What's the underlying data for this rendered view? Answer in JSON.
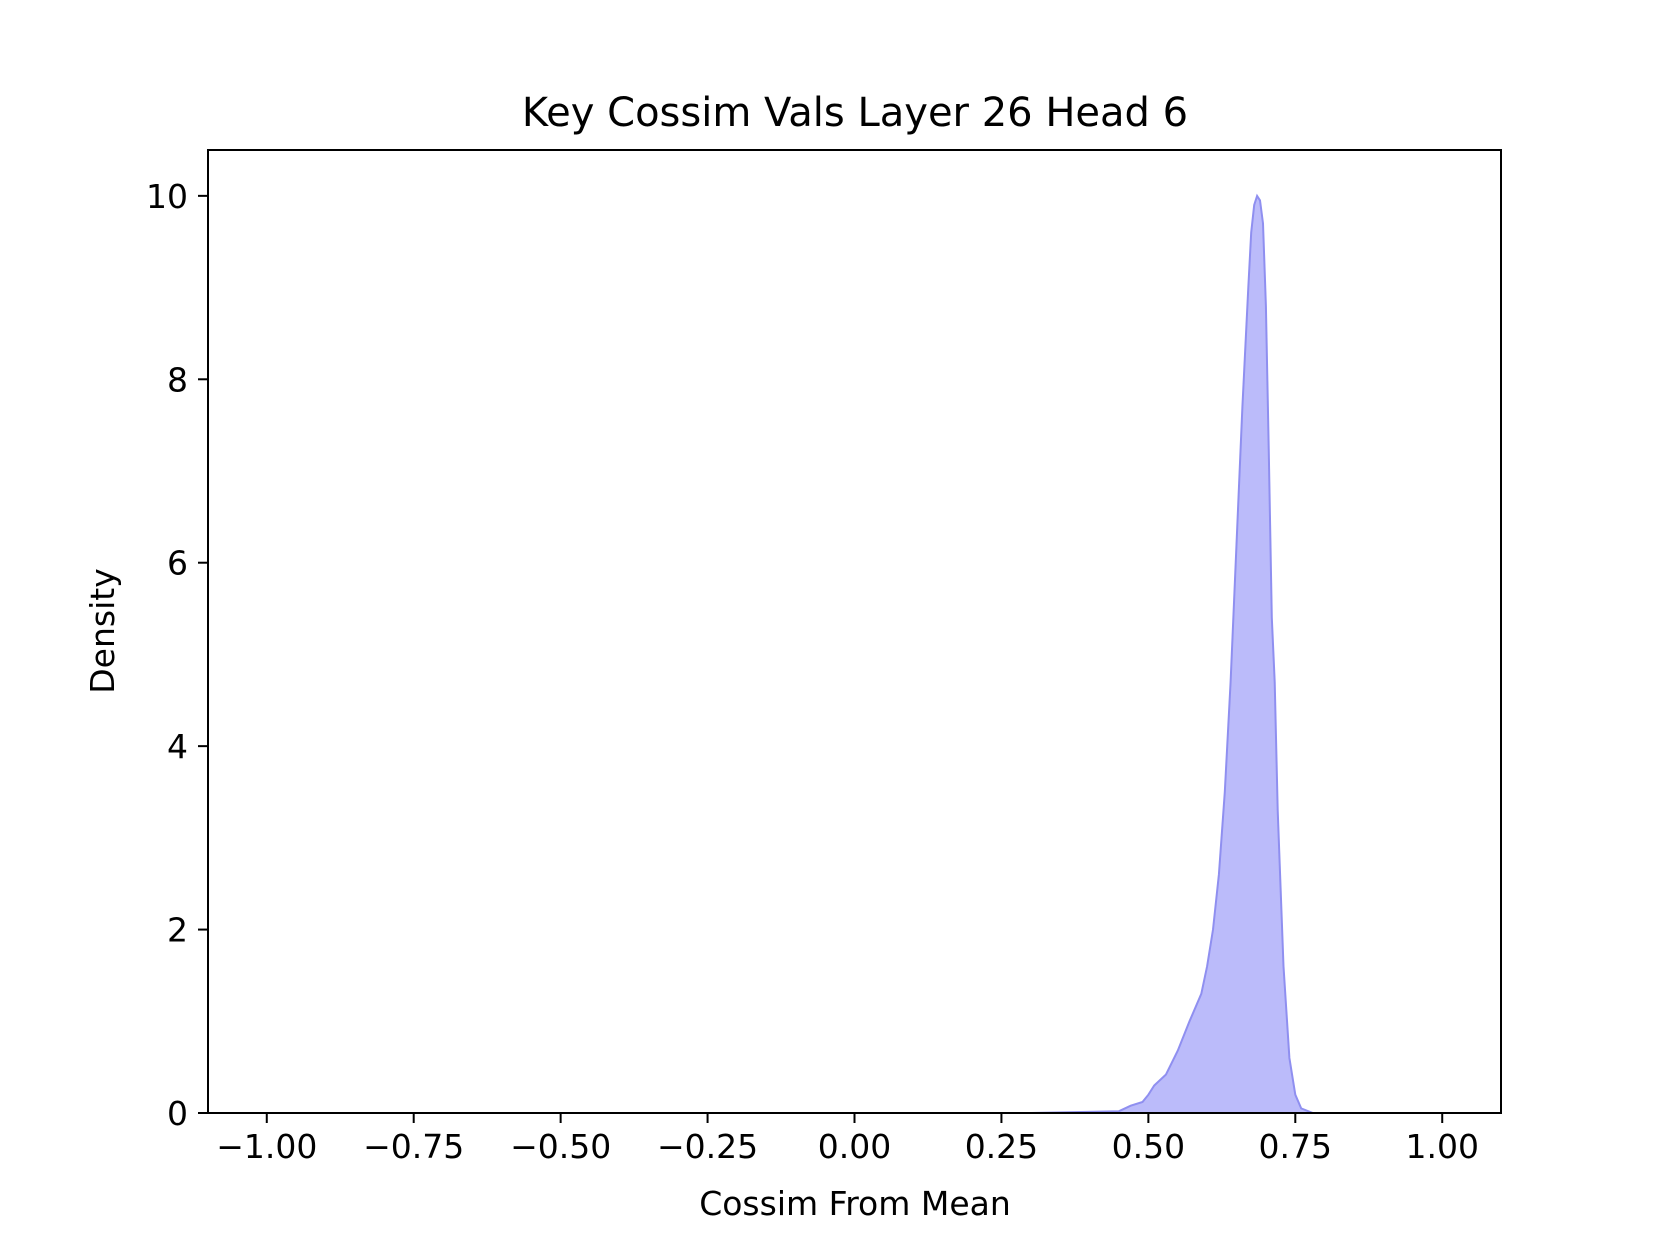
{
  "chart_data": {
    "type": "area",
    "title": "Key Cossim Vals Layer 26 Head 6",
    "xlabel": "Cossim From Mean",
    "ylabel": "Density",
    "xlim": [
      -1.1,
      1.1
    ],
    "ylim": [
      0,
      10.5
    ],
    "xticks": [
      -1.0,
      -0.75,
      -0.5,
      -0.25,
      0.0,
      0.25,
      0.5,
      0.75,
      1.0
    ],
    "xtick_labels": [
      "−1.00",
      "−0.75",
      "−0.50",
      "−0.25",
      "0.00",
      "0.25",
      "0.50",
      "0.75",
      "1.00"
    ],
    "yticks": [
      0,
      2,
      4,
      6,
      8,
      10
    ],
    "ytick_labels": [
      "0",
      "2",
      "4",
      "6",
      "8",
      "10"
    ],
    "grid": false,
    "fill_color": "#bbbbfa",
    "line_color": "#8f8ff0",
    "series": [
      {
        "x": [
          -0.4,
          0.0,
          0.3,
          0.45,
          0.47,
          0.49,
          0.5,
          0.51,
          0.53,
          0.55,
          0.57,
          0.59,
          0.6,
          0.61,
          0.62,
          0.63,
          0.64,
          0.65,
          0.66,
          0.67,
          0.675,
          0.68,
          0.685,
          0.69,
          0.695,
          0.7,
          0.705,
          0.71,
          0.715,
          0.72,
          0.73,
          0.74,
          0.75,
          0.76,
          0.78
        ],
        "y": [
          0.0,
          0.0,
          0.0,
          0.02,
          0.08,
          0.12,
          0.2,
          0.3,
          0.42,
          0.68,
          1.0,
          1.3,
          1.6,
          2.0,
          2.6,
          3.5,
          4.7,
          6.2,
          7.7,
          9.0,
          9.6,
          9.9,
          10.0,
          9.95,
          9.7,
          8.8,
          7.2,
          5.4,
          4.7,
          3.3,
          1.6,
          0.6,
          0.2,
          0.05,
          0.0
        ]
      }
    ]
  }
}
